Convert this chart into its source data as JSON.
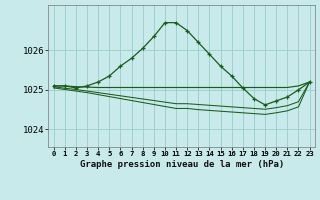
{
  "bg_color": "#c8eaea",
  "grid_color": "#99cccc",
  "line_color": "#1a5c1a",
  "title": "Graphe pression niveau de la mer (hPa)",
  "ylim": [
    1023.55,
    1027.15
  ],
  "yticks": [
    1024,
    1025,
    1026
  ],
  "x_labels": [
    "0",
    "1",
    "2",
    "3",
    "4",
    "5",
    "6",
    "7",
    "8",
    "9",
    "10",
    "11",
    "12",
    "13",
    "14",
    "15",
    "16",
    "17",
    "18",
    "19",
    "20",
    "21",
    "22",
    "23"
  ],
  "main_series": [
    1025.1,
    1025.1,
    1025.05,
    1025.1,
    1025.2,
    1025.35,
    1025.6,
    1025.8,
    1026.05,
    1026.35,
    1026.7,
    1026.7,
    1026.5,
    1026.2,
    1025.9,
    1025.6,
    1025.35,
    1025.05,
    1024.78,
    1024.62,
    1024.72,
    1024.82,
    1025.0,
    1025.2
  ],
  "flat_line": [
    1025.1,
    1025.1,
    1025.08,
    1025.07,
    1025.06,
    1025.06,
    1025.06,
    1025.06,
    1025.06,
    1025.06,
    1025.06,
    1025.06,
    1025.06,
    1025.06,
    1025.06,
    1025.06,
    1025.06,
    1025.06,
    1025.06,
    1025.06,
    1025.06,
    1025.06,
    1025.1,
    1025.2
  ],
  "trend1": [
    1025.08,
    1025.04,
    1025.01,
    1024.97,
    1024.93,
    1024.89,
    1024.85,
    1024.81,
    1024.77,
    1024.73,
    1024.69,
    1024.65,
    1024.65,
    1024.63,
    1024.61,
    1024.59,
    1024.57,
    1024.55,
    1024.53,
    1024.51,
    1024.55,
    1024.6,
    1024.7,
    1025.2
  ],
  "trend2": [
    1025.05,
    1025.01,
    1024.97,
    1024.93,
    1024.88,
    1024.83,
    1024.78,
    1024.73,
    1024.68,
    1024.63,
    1024.58,
    1024.53,
    1024.53,
    1024.5,
    1024.48,
    1024.46,
    1024.44,
    1024.42,
    1024.4,
    1024.38,
    1024.42,
    1024.47,
    1024.57,
    1025.2
  ]
}
